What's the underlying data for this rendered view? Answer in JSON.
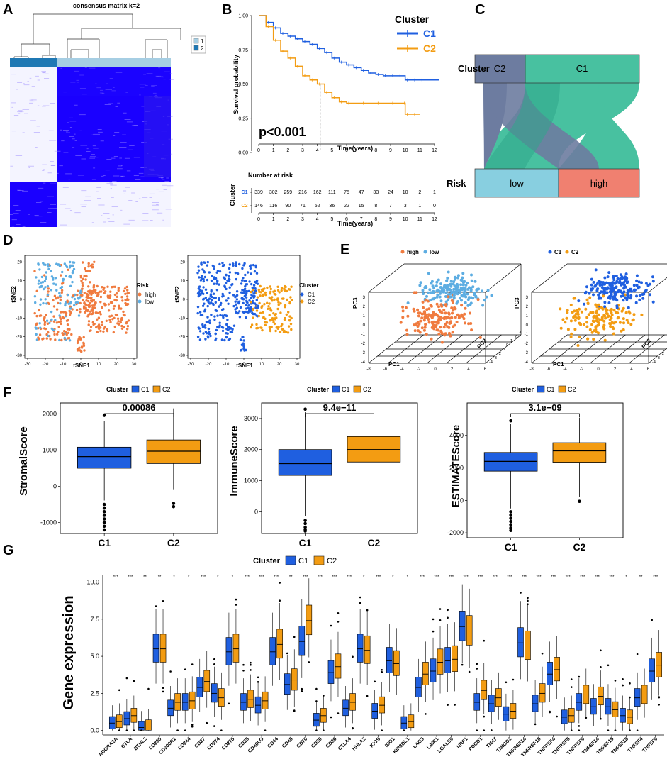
{
  "panels": {
    "A": "A",
    "B": "B",
    "C": "C",
    "D": "D",
    "E": "E",
    "F": "F",
    "G": "G"
  },
  "heatmap": {
    "title": "consensus matrix k=2",
    "legend": [
      "1",
      "2"
    ],
    "colors": {
      "c1": "#a6cee3",
      "c2": "#1f78b4",
      "high": "#1a00ff",
      "low": "#ffffff"
    }
  },
  "chart_data": [
    {
      "type": "line",
      "name": "Kaplan-Meier survival",
      "title": "",
      "xlabel": "Time(years)",
      "ylabel": "Survival probability",
      "xlim": [
        0,
        12
      ],
      "ylim": [
        0,
        1
      ],
      "xticks": [
        "0",
        "1",
        "2",
        "3",
        "4",
        "5",
        "6",
        "7",
        "8",
        "9",
        "10",
        "11",
        "12"
      ],
      "yticks": [
        "0.00",
        "0.25",
        "0.50",
        "0.75",
        "1.00"
      ],
      "legend_title": "Cluster",
      "pvalue": "p<0.001",
      "series": [
        {
          "name": "C1",
          "color": "#1f5fe0",
          "x": [
            0,
            0.5,
            1,
            1.5,
            2,
            2.5,
            3,
            3.5,
            4,
            4.5,
            5,
            5.5,
            6,
            6.5,
            7,
            7.5,
            8,
            8.5,
            9,
            9.5,
            10,
            10.5,
            11,
            12.3
          ],
          "y": [
            1,
            0.95,
            0.91,
            0.87,
            0.85,
            0.83,
            0.81,
            0.79,
            0.76,
            0.73,
            0.69,
            0.66,
            0.64,
            0.62,
            0.6,
            0.58,
            0.57,
            0.56,
            0.56,
            0.56,
            0.53,
            0.53,
            0.53,
            0.53
          ]
        },
        {
          "name": "C2",
          "color": "#f39c12",
          "x": [
            0,
            0.5,
            1,
            1.5,
            2,
            2.5,
            3,
            3.5,
            4,
            4.5,
            5,
            5.5,
            6,
            7,
            8,
            9,
            9.8,
            10,
            10.5,
            11
          ],
          "y": [
            1,
            0.92,
            0.82,
            0.74,
            0.69,
            0.63,
            0.56,
            0.53,
            0.5,
            0.44,
            0.4,
            0.37,
            0.36,
            0.36,
            0.36,
            0.36,
            0.36,
            0.28,
            0.28,
            0.28
          ]
        }
      ]
    },
    {
      "type": "table",
      "name": "Number at risk",
      "title": "Number at risk",
      "row_label": "Cluster",
      "xlabel": "Time(years)",
      "rows": [
        {
          "name": "C1",
          "color": "#1f5fe0",
          "values": [
            "339",
            "302",
            "259",
            "216",
            "162",
            "111",
            "75",
            "47",
            "33",
            "24",
            "10",
            "2",
            "1"
          ]
        },
        {
          "name": "C2",
          "color": "#f39c12",
          "values": [
            "146",
            "116",
            "90",
            "71",
            "52",
            "36",
            "22",
            "15",
            "8",
            "7",
            "3",
            "1",
            "0"
          ]
        }
      ]
    },
    {
      "type": "bar",
      "name": "Sankey Cluster-Risk",
      "top_label": "Cluster",
      "bottom_label": "Risk",
      "top": [
        {
          "name": "C2",
          "value": 146,
          "color": "#6d7ca0"
        },
        {
          "name": "C1",
          "value": 339,
          "color": "#48c1a0"
        }
      ],
      "bottom": [
        {
          "name": "low",
          "value": 242,
          "color": "#88cfe0"
        },
        {
          "name": "high",
          "value": 243,
          "color": "#f08070"
        }
      ],
      "flows": [
        {
          "from": "C2",
          "to": "low",
          "value": 60
        },
        {
          "from": "C2",
          "to": "high",
          "value": 86
        },
        {
          "from": "C1",
          "to": "low",
          "value": 182
        },
        {
          "from": "C1",
          "to": "high",
          "value": 157
        }
      ]
    },
    {
      "type": "scatter",
      "name": "tSNE Risk",
      "xlabel": "tSNE1",
      "ylabel": "tSNE2",
      "xlim": [
        -30,
        30
      ],
      "ylim": [
        -30,
        22
      ],
      "xticks": [
        "-30",
        "-20",
        "-10",
        "0",
        "10",
        "20",
        "30"
      ],
      "yticks": [
        "-30",
        "-20",
        "-10",
        "0",
        "10",
        "20"
      ],
      "legend_title": "Risk",
      "series": [
        {
          "name": "high",
          "color": "#f07b3f"
        },
        {
          "name": "low",
          "color": "#5dade2"
        }
      ]
    },
    {
      "type": "scatter",
      "name": "tSNE Cluster",
      "xlabel": "tSNE1",
      "ylabel": "tSNE2",
      "xlim": [
        -30,
        30
      ],
      "ylim": [
        -30,
        22
      ],
      "xticks": [
        "-30",
        "-20",
        "-10",
        "0",
        "10",
        "20",
        "30"
      ],
      "yticks": [
        "-30",
        "-20",
        "-10",
        "0",
        "10",
        "20"
      ],
      "legend_title": "Cluster",
      "series": [
        {
          "name": "C1",
          "color": "#1f5fe0"
        },
        {
          "name": "C2",
          "color": "#f39c12"
        }
      ]
    },
    {
      "type": "scatter",
      "name": "PCA 3D Risk",
      "legend": [
        {
          "name": "high",
          "color": "#f07b3f"
        },
        {
          "name": "low",
          "color": "#5dade2"
        }
      ],
      "axes": [
        "PC1",
        "PC2",
        "PC3"
      ]
    },
    {
      "type": "scatter",
      "name": "PCA 3D Cluster",
      "legend": [
        {
          "name": "C1",
          "color": "#1f5fe0"
        },
        {
          "name": "C2",
          "color": "#f39c12"
        }
      ],
      "axes": [
        "PC1",
        "PC2",
        "PC3"
      ]
    },
    {
      "type": "bar",
      "name": "StromalScore boxplot",
      "ylabel": "StromalScore",
      "categories": [
        "C1",
        "C2"
      ],
      "ylim": [
        -1300,
        2300
      ],
      "yticks": [
        "-1000",
        "0",
        "1000",
        "2000"
      ],
      "pvalue": "0.00086",
      "legend_title": "Cluster",
      "boxes": [
        {
          "name": "C1",
          "min": -390,
          "q1": 500,
          "median": 820,
          "q3": 1080,
          "max": 1800,
          "outliers": [
            1960,
            -500,
            -600,
            -700,
            -800,
            -900,
            -1000,
            -1100,
            -1200
          ]
        },
        {
          "name": "C2",
          "min": -100,
          "q1": 630,
          "median": 970,
          "q3": 1280,
          "max": 2150,
          "outliers": [
            -470,
            -560
          ]
        }
      ]
    },
    {
      "type": "bar",
      "name": "ImmuneScore boxplot",
      "ylabel": "ImmuneScore",
      "categories": [
        "C1",
        "C2"
      ],
      "ylim": [
        -700,
        3500
      ],
      "yticks": [
        "0",
        "1000",
        "2000",
        "3000"
      ],
      "pvalue": "9.4e−11",
      "legend_title": "Cluster",
      "boxes": [
        {
          "name": "C1",
          "min": -150,
          "q1": 1170,
          "median": 1550,
          "q3": 2000,
          "max": 3200,
          "outliers": [
            3300,
            -280,
            -380,
            -500,
            -580,
            -620
          ]
        },
        {
          "name": "C2",
          "min": 320,
          "q1": 1600,
          "median": 2000,
          "q3": 2420,
          "max": 3500,
          "outliers": []
        }
      ]
    },
    {
      "type": "bar",
      "name": "ESTIMATEScore boxplot",
      "ylabel": "ESTIMATEScore",
      "categories": [
        "C1",
        "C2"
      ],
      "ylim": [
        -2300,
        6000
      ],
      "yticks": [
        "-2000",
        "0",
        "2000",
        "4000"
      ],
      "pvalue": "3.1e−09",
      "legend_title": "Cluster",
      "boxes": [
        {
          "name": "C1",
          "min": -500,
          "q1": 1800,
          "median": 2400,
          "q3": 2950,
          "max": 4700,
          "outliers": [
            4900,
            -700,
            -900,
            -1100,
            -1300,
            -1500,
            -1700,
            -1850
          ]
        },
        {
          "name": "C2",
          "min": 200,
          "q1": 2350,
          "median": 3050,
          "q3": 3550,
          "max": 5100,
          "outliers": [
            -60
          ]
        }
      ]
    },
    {
      "type": "bar",
      "name": "Gene expression boxplot",
      "ylabel": "Gene expression",
      "ylim": [
        -0.3,
        10.5
      ],
      "yticks": [
        "0.0",
        "2.5",
        "5.0",
        "7.5",
        "10.0"
      ],
      "legend_title": "Cluster",
      "series": [
        {
          "name": "C1",
          "color": "#1f5fe0"
        },
        {
          "name": "C2",
          "color": "#f39c12"
        }
      ],
      "categories": [
        "ADORA2A",
        "BTLA",
        "BTNL2",
        "CD200",
        "CD200R1",
        "CD244",
        "CD27",
        "CD274",
        "CD276",
        "CD28",
        "CD40LG",
        "CD44",
        "CD48",
        "CD70",
        "CD80",
        "CD86",
        "CTLA4",
        "HHLA2",
        "ICOS",
        "IDO1",
        "KIR3DL1",
        "LAG3",
        "LAIR1",
        "LGALS9",
        "NRP1",
        "PDCD1",
        "TIGIT",
        "TMIGD2",
        "TNFRSF14",
        "TNFRSF18",
        "TNFRSF4",
        "TNFRSF8",
        "TNFRSF9",
        "TNFSF14",
        "TNFSF15",
        "TNFSF18",
        "TNFSF4",
        "TNFSF9"
      ],
      "signif": [
        "***",
        "***",
        "**",
        "**",
        "*",
        "*",
        "***",
        "*",
        "*",
        "***",
        "***",
        "***",
        "**",
        "***",
        "***",
        "***",
        "***",
        "*",
        "***",
        "*",
        "*",
        "***",
        "***",
        "***",
        "***",
        "***",
        "***",
        "***",
        "***",
        "***",
        "***",
        "***",
        "***",
        "***",
        "***",
        "*",
        "**",
        "***"
      ],
      "c1_median": [
        0.5,
        0.8,
        0.2,
        5.5,
        1.5,
        1.9,
        2.9,
        2.5,
        5.3,
        1.9,
        1.7,
        5.3,
        3.1,
        6.0,
        0.7,
        3.9,
        1.5,
        5.5,
        1.3,
        4.7,
        0.5,
        2.9,
        4.0,
        4.7,
        7.0,
        1.9,
        1.8,
        1.1,
        5.9,
        1.8,
        3.8,
        0.9,
        1.9,
        1.6,
        1.6,
        1.0,
        2.2,
        4.0
      ],
      "c2_median": [
        0.6,
        1.0,
        0.3,
        5.5,
        1.9,
        2.0,
        3.3,
        2.2,
        5.5,
        2.1,
        2.0,
        5.8,
        3.4,
        7.4,
        1.0,
        4.3,
        1.9,
        5.4,
        1.7,
        4.5,
        0.6,
        3.8,
        4.6,
        4.8,
        6.7,
        2.7,
        2.2,
        1.3,
        5.7,
        2.5,
        4.1,
        1.0,
        2.4,
        2.3,
        1.4,
        0.9,
        2.4,
        4.4
      ]
    }
  ]
}
